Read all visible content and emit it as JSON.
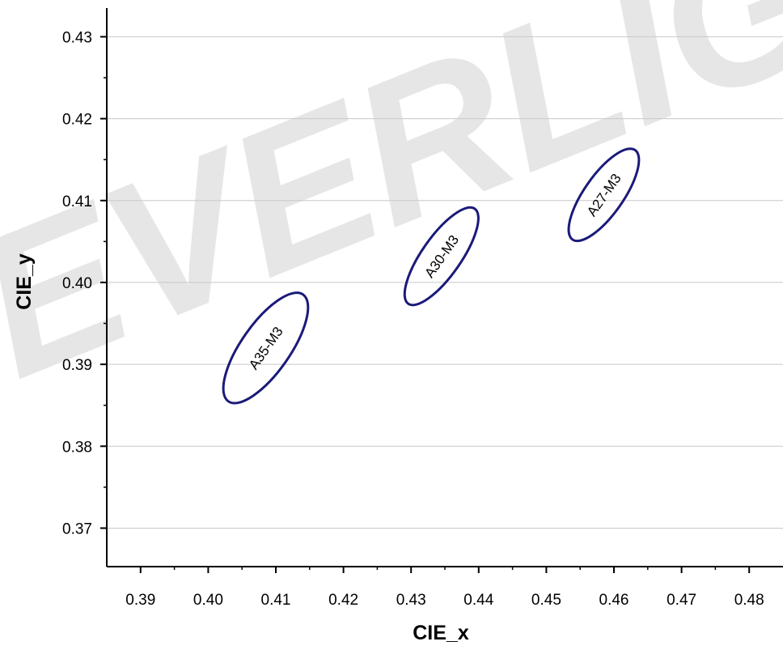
{
  "watermark": "EVERLIGHT",
  "chart_data": {
    "type": "scatter",
    "title": "",
    "xlabel": "CIE_x",
    "ylabel": "CIE_y",
    "xlim": [
      0.385,
      0.485
    ],
    "ylim": [
      0.3653,
      0.4335
    ],
    "xticks": [
      0.39,
      0.4,
      0.41,
      0.42,
      0.43,
      0.44,
      0.45,
      0.46,
      0.47,
      0.48
    ],
    "yticks": [
      0.37,
      0.38,
      0.39,
      0.4,
      0.41,
      0.42,
      0.43
    ],
    "xtick_labels": [
      "0.39",
      "0.40",
      "0.41",
      "0.42",
      "0.43",
      "0.44",
      "0.45",
      "0.46",
      "0.47",
      "0.48"
    ],
    "ytick_labels": [
      "0.37",
      "0.38",
      "0.39",
      "0.40",
      "0.41",
      "0.42",
      "0.43"
    ],
    "grid": {
      "horizontal": true,
      "vertical": false
    },
    "ellipse_color": "#1a1a7a",
    "ellipses": [
      {
        "label": "A35-M3",
        "cx": 0.4085,
        "cy": 0.392,
        "x_range": [
          0.4035,
          0.4135
        ],
        "y_range": [
          0.3843,
          0.3995
        ]
      },
      {
        "label": "A30-M3",
        "cx": 0.4345,
        "cy": 0.4032,
        "x_range": [
          0.4305,
          0.4385
        ],
        "y_range": [
          0.3963,
          0.4102
        ]
      },
      {
        "label": "A27-M3",
        "cx": 0.4585,
        "cy": 0.4107,
        "x_range": [
          0.4545,
          0.4625
        ],
        "y_range": [
          0.4043,
          0.4172
        ]
      }
    ]
  }
}
